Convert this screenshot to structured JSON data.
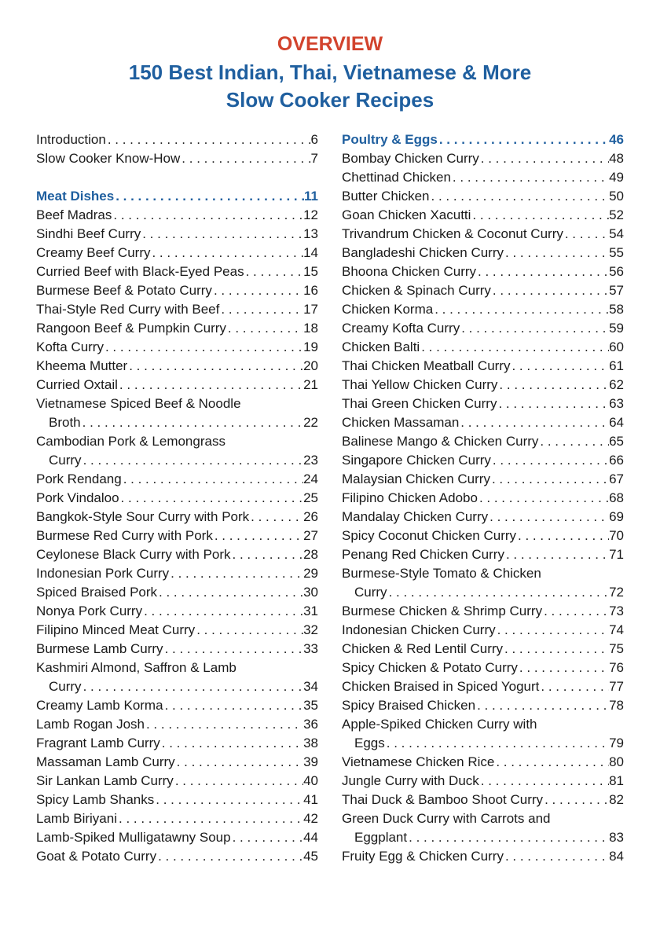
{
  "header": {
    "overline": "OVERVIEW",
    "title": [
      "150 Best Indian, Thai, Vietnamese & More",
      "Slow Cooker Recipes"
    ]
  },
  "columns": [
    {
      "front": [
        {
          "lines": [
            "Introduction"
          ],
          "page": 6
        },
        {
          "lines": [
            "Slow Cooker Know-How"
          ],
          "page": 7
        }
      ],
      "sections": [
        {
          "heading": {
            "text": "Meat Dishes",
            "page": 11
          },
          "entries": [
            {
              "lines": [
                "Beef Madras"
              ],
              "page": 12
            },
            {
              "lines": [
                "Sindhi Beef Curry"
              ],
              "page": 13
            },
            {
              "lines": [
                "Creamy Beef Curry"
              ],
              "page": 14
            },
            {
              "lines": [
                "Curried Beef with Black-Eyed Peas"
              ],
              "page": 15
            },
            {
              "lines": [
                "Burmese Beef & Potato Curry"
              ],
              "page": 16
            },
            {
              "lines": [
                "Thai-Style Red Curry with Beef"
              ],
              "page": 17
            },
            {
              "lines": [
                "Rangoon Beef & Pumpkin Curry"
              ],
              "page": 18
            },
            {
              "lines": [
                "Kofta Curry"
              ],
              "page": 19
            },
            {
              "lines": [
                "Kheema Mutter"
              ],
              "page": 20
            },
            {
              "lines": [
                "Curried Oxtail"
              ],
              "page": 21
            },
            {
              "lines": [
                "Vietnamese Spiced Beef & Noodle",
                "Broth"
              ],
              "page": 22
            },
            {
              "lines": [
                "Cambodian Pork & Lemongrass",
                "Curry"
              ],
              "page": 23
            },
            {
              "lines": [
                "Pork Rendang"
              ],
              "page": 24
            },
            {
              "lines": [
                "Pork Vindaloo"
              ],
              "page": 25
            },
            {
              "lines": [
                "Bangkok-Style Sour Curry with Pork"
              ],
              "page": 26
            },
            {
              "lines": [
                "Burmese Red Curry with Pork"
              ],
              "page": 27
            },
            {
              "lines": [
                "Ceylonese Black Curry with Pork"
              ],
              "page": 28
            },
            {
              "lines": [
                "Indonesian Pork Curry"
              ],
              "page": 29
            },
            {
              "lines": [
                "Spiced Braised Pork"
              ],
              "page": 30
            },
            {
              "lines": [
                "Nonya Pork Curry"
              ],
              "page": 31
            },
            {
              "lines": [
                "Filipino Minced Meat Curry"
              ],
              "page": 32
            },
            {
              "lines": [
                "Burmese Lamb Curry"
              ],
              "page": 33
            },
            {
              "lines": [
                "Kashmiri Almond, Saffron & Lamb",
                "Curry"
              ],
              "page": 34
            },
            {
              "lines": [
                "Creamy Lamb Korma"
              ],
              "page": 35
            },
            {
              "lines": [
                "Lamb Rogan Josh"
              ],
              "page": 36
            },
            {
              "lines": [
                "Fragrant Lamb Curry"
              ],
              "page": 38
            },
            {
              "lines": [
                "Massaman Lamb Curry"
              ],
              "page": 39
            },
            {
              "lines": [
                "Sir Lankan Lamb Curry"
              ],
              "page": 40
            },
            {
              "lines": [
                "Spicy Lamb Shanks"
              ],
              "page": 41
            },
            {
              "lines": [
                "Lamb Biriyani"
              ],
              "page": 42
            },
            {
              "lines": [
                "Lamb-Spiked Mulligatawny Soup"
              ],
              "page": 44
            },
            {
              "lines": [
                "Goat & Potato Curry"
              ],
              "page": 45
            }
          ]
        }
      ]
    },
    {
      "sections": [
        {
          "heading": {
            "text": "Poultry & Eggs",
            "page": 46
          },
          "entries": [
            {
              "lines": [
                "Bombay Chicken Curry"
              ],
              "page": 48
            },
            {
              "lines": [
                "Chettinad Chicken"
              ],
              "page": 49
            },
            {
              "lines": [
                "Butter Chicken"
              ],
              "page": 50
            },
            {
              "lines": [
                "Goan Chicken Xacutti"
              ],
              "page": 52
            },
            {
              "lines": [
                "Trivandrum Chicken & Coconut Curry"
              ],
              "page": 54
            },
            {
              "lines": [
                "Bangladeshi Chicken Curry"
              ],
              "page": 55
            },
            {
              "lines": [
                "Bhoona Chicken Curry"
              ],
              "page": 56
            },
            {
              "lines": [
                "Chicken & Spinach Curry"
              ],
              "page": 57
            },
            {
              "lines": [
                "Chicken Korma"
              ],
              "page": 58
            },
            {
              "lines": [
                "Creamy Kofta Curry"
              ],
              "page": 59
            },
            {
              "lines": [
                "Chicken Balti"
              ],
              "page": 60
            },
            {
              "lines": [
                "Thai Chicken Meatball Curry"
              ],
              "page": 61
            },
            {
              "lines": [
                "Thai Yellow Chicken Curry"
              ],
              "page": 62
            },
            {
              "lines": [
                "Thai Green Chicken Curry"
              ],
              "page": 63
            },
            {
              "lines": [
                "Chicken Massaman"
              ],
              "page": 64
            },
            {
              "lines": [
                "Balinese Mango & Chicken Curry"
              ],
              "page": 65
            },
            {
              "lines": [
                "Singapore Chicken Curry"
              ],
              "page": 66
            },
            {
              "lines": [
                "Malaysian Chicken Curry"
              ],
              "page": 67
            },
            {
              "lines": [
                "Filipino Chicken Adobo"
              ],
              "page": 68
            },
            {
              "lines": [
                "Mandalay Chicken Curry"
              ],
              "page": 69
            },
            {
              "lines": [
                "Spicy Coconut Chicken Curry"
              ],
              "page": 70
            },
            {
              "lines": [
                "Penang Red Chicken Curry"
              ],
              "page": 71
            },
            {
              "lines": [
                "Burmese-Style Tomato & Chicken",
                "Curry"
              ],
              "page": 72
            },
            {
              "lines": [
                "Burmese Chicken & Shrimp Curry"
              ],
              "page": 73
            },
            {
              "lines": [
                "Indonesian Chicken Curry"
              ],
              "page": 74
            },
            {
              "lines": [
                "Chicken & Red Lentil Curry"
              ],
              "page": 75
            },
            {
              "lines": [
                "Spicy Chicken & Potato Curry"
              ],
              "page": 76
            },
            {
              "lines": [
                "Chicken Braised in Spiced Yogurt"
              ],
              "page": 77
            },
            {
              "lines": [
                "Spicy Braised Chicken"
              ],
              "page": 78
            },
            {
              "lines": [
                "Apple-Spiked Chicken Curry with",
                "Eggs"
              ],
              "page": 79
            },
            {
              "lines": [
                "Vietnamese Chicken Rice"
              ],
              "page": 80
            },
            {
              "lines": [
                "Jungle Curry with Duck"
              ],
              "page": 81
            },
            {
              "lines": [
                "Thai Duck & Bamboo Shoot Curry"
              ],
              "page": 82
            },
            {
              "lines": [
                "Green Duck Curry with Carrots and",
                "Eggplant"
              ],
              "page": 83
            },
            {
              "lines": [
                "Fruity Egg & Chicken Curry"
              ],
              "page": 84
            }
          ]
        }
      ]
    }
  ]
}
